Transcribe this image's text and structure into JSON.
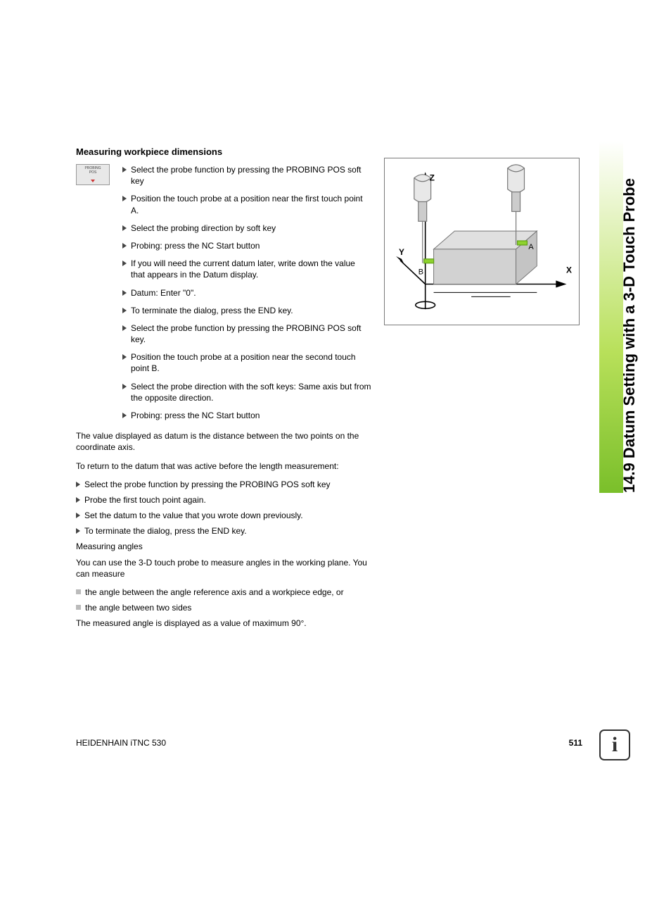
{
  "heading": "Measuring workpiece dimensions",
  "softkey_label": "PROBING\nPOS",
  "steps_primary": [
    "Select the probe function by pressing the PROBING POS soft key",
    "Position the touch probe at a position near the first touch point A.",
    "Select the probing direction by soft key",
    "Probing: press the NC Start button",
    "If you will need the current datum later, write down the value that appears in the Datum display.",
    "Datum: Enter \"0\".",
    "To terminate the dialog, press the END key.",
    "Select the probe function by pressing the PROBING POS soft key.",
    "Position the touch probe at a position near the second touch point B.",
    "Select the probe direction with the soft keys: Same axis but from the opposite direction.",
    "Probing: press the NC Start button"
  ],
  "para1": "The value displayed as datum is the distance between the two points on the coordinate axis.",
  "para2": "To return to the datum that was active before the length measurement:",
  "steps_return": [
    "Select the probe function by pressing the PROBING POS soft key",
    "Probe the first touch point again.",
    "Set the datum to the value that you wrote down previously.",
    "To terminate the dialog, press the END key."
  ],
  "sub_heading": "Measuring angles",
  "para3": "You can use the 3-D touch probe to measure angles in the working plane. You can measure",
  "sq_items": [
    "the angle between the angle reference axis and a workpiece edge, or",
    "the angle between two sides"
  ],
  "para4": "The measured angle is displayed as a value of maximum 90°.",
  "diagram": {
    "axis_labels": {
      "x": "X",
      "y": "Y",
      "z": "Z"
    },
    "points": {
      "a": "A",
      "b": "B"
    },
    "colors": {
      "block_top": "#e0e0e0",
      "block_left": "#c4c4c4",
      "block_front": "#d2d2d2",
      "probe_body": "#cccccc",
      "probe_stroke": "#777777",
      "stylus_tip": "#8ed22e",
      "axis_stroke": "#000000"
    }
  },
  "side_title": "14.9 Datum Setting with a 3-D Touch Probe",
  "side_gradient": {
    "from": "#ffffff",
    "mid": "#b8e05a",
    "to": "#7abf2a"
  },
  "footer_left": "HEIDENHAIN iTNC 530",
  "page_number": "511",
  "info_glyph": "i"
}
